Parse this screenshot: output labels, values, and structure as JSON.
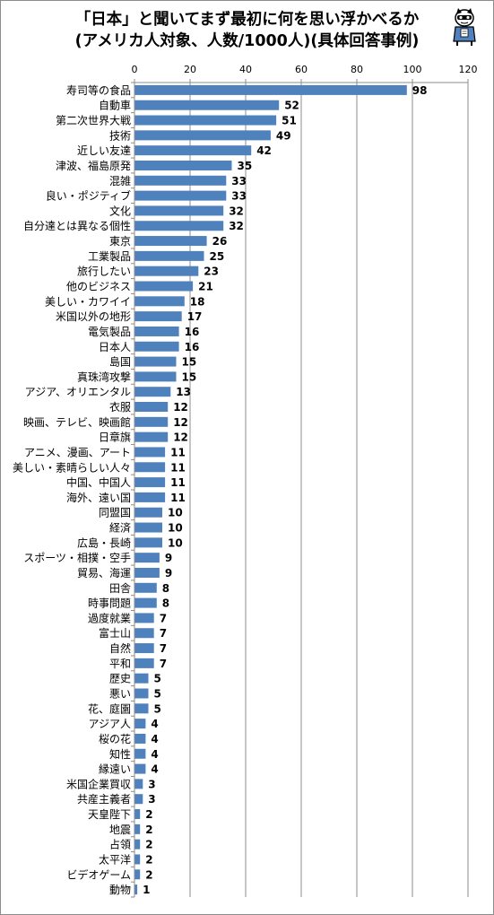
{
  "title": {
    "line1": "「日本」と聞いてまず最初に何を思い浮かべるか",
    "line2": "(アメリカ人対象、人数/1000人)(具体回答事例)"
  },
  "colors": {
    "bar": "#4f81bd",
    "grid": "#8c8c8c",
    "axis": "#8c8c8c"
  },
  "chart_data": {
    "type": "bar",
    "orientation": "horizontal",
    "categories": [
      "寿司等の食品",
      "自動車",
      "第二次世界大戦",
      "技術",
      "近しい友達",
      "津波、福島原発",
      "混雑",
      "良い・ポジティブ",
      "文化",
      "自分達とは異なる個性",
      "東京",
      "工業製品",
      "旅行したい",
      "他のビジネス",
      "美しい・カワイイ",
      "米国以外の地形",
      "電気製品",
      "日本人",
      "島国",
      "真珠湾攻撃",
      "アジア、オリエンタル",
      "衣服",
      "映画、テレビ、映画館",
      "日章旗",
      "アニメ、漫画、アート",
      "美しい・素晴らしい人々",
      "中国、中国人",
      "海外、遠い国",
      "同盟国",
      "経済",
      "広島・長崎",
      "スポーツ・相撲・空手",
      "貿易、海運",
      "田舎",
      "時事問題",
      "過度就業",
      "富士山",
      "自然",
      "平和",
      "歴史",
      "悪い",
      "花、庭園",
      "アジア人",
      "桜の花",
      "知性",
      "縁遠い",
      "米国企業買収",
      "共産主義者",
      "天皇陛下",
      "地震",
      "占領",
      "太平洋",
      "ビデオゲーム",
      "動物"
    ],
    "values": [
      98,
      52,
      51,
      49,
      42,
      35,
      33,
      33,
      32,
      32,
      26,
      25,
      23,
      21,
      18,
      17,
      16,
      16,
      15,
      15,
      13,
      12,
      12,
      12,
      11,
      11,
      11,
      11,
      10,
      10,
      10,
      9,
      9,
      8,
      8,
      7,
      7,
      7,
      7,
      5,
      5,
      5,
      4,
      4,
      4,
      4,
      3,
      3,
      2,
      2,
      2,
      2,
      2,
      1
    ],
    "xlim": [
      0,
      120
    ],
    "xticks": [
      0,
      20,
      40,
      60,
      80,
      100,
      120
    ],
    "grid": true,
    "legend": "none"
  }
}
